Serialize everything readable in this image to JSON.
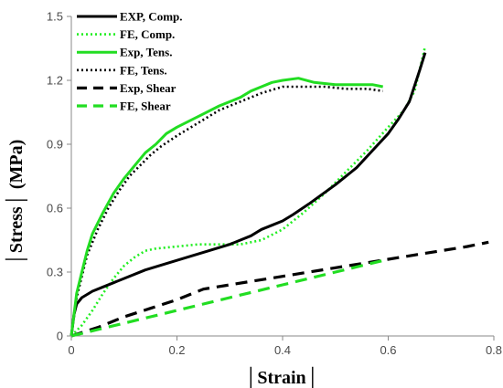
{
  "chart_data": {
    "type": "line",
    "xlabel": "│Strain│",
    "ylabel": "│Stress│ (MPa)",
    "xlim": [
      0,
      0.8
    ],
    "ylim": [
      0,
      1.5
    ],
    "x_ticks": [
      "0",
      "0.2",
      "0.4",
      "0.6",
      "0.8"
    ],
    "y_ticks": [
      "0",
      "0.3",
      "0.6",
      "0.9",
      "1.2",
      "1.5"
    ],
    "x_tick_values": [
      0,
      0.2,
      0.4,
      0.6,
      0.8
    ],
    "y_tick_values": [
      0,
      0.3,
      0.6,
      0.9,
      1.2,
      1.5
    ],
    "grid": false,
    "legend_position": "top-left",
    "series": [
      {
        "name": "EXP, Comp.",
        "color": "#000000",
        "style": "solid",
        "x": [
          0,
          0.005,
          0.01,
          0.02,
          0.04,
          0.06,
          0.08,
          0.1,
          0.14,
          0.18,
          0.22,
          0.26,
          0.3,
          0.34,
          0.36,
          0.38,
          0.4,
          0.42,
          0.45,
          0.5,
          0.54,
          0.57,
          0.6,
          0.62,
          0.64,
          0.66,
          0.67
        ],
        "y": [
          0,
          0.1,
          0.15,
          0.18,
          0.21,
          0.23,
          0.25,
          0.27,
          0.31,
          0.34,
          0.37,
          0.4,
          0.43,
          0.47,
          0.5,
          0.52,
          0.54,
          0.57,
          0.62,
          0.71,
          0.79,
          0.87,
          0.95,
          1.02,
          1.1,
          1.25,
          1.33
        ]
      },
      {
        "name": "FE, Comp.",
        "color": "#22ee22",
        "style": "dotted",
        "x": [
          0,
          0.02,
          0.04,
          0.06,
          0.08,
          0.1,
          0.12,
          0.14,
          0.16,
          0.2,
          0.24,
          0.28,
          0.32,
          0.36,
          0.4,
          0.44,
          0.48,
          0.52,
          0.56,
          0.6,
          0.63,
          0.65,
          0.67
        ],
        "y": [
          0,
          0.05,
          0.12,
          0.2,
          0.27,
          0.33,
          0.37,
          0.4,
          0.41,
          0.42,
          0.43,
          0.43,
          0.43,
          0.45,
          0.5,
          0.58,
          0.67,
          0.77,
          0.87,
          0.98,
          1.06,
          1.15,
          1.36
        ]
      },
      {
        "name": "Exp, Tens.",
        "color": "#22dd22",
        "style": "solid",
        "x": [
          0,
          0.01,
          0.02,
          0.03,
          0.04,
          0.06,
          0.08,
          0.1,
          0.12,
          0.14,
          0.16,
          0.18,
          0.2,
          0.24,
          0.28,
          0.32,
          0.34,
          0.36,
          0.38,
          0.4,
          0.43,
          0.46,
          0.5,
          0.54,
          0.57,
          0.59
        ],
        "y": [
          0,
          0.2,
          0.3,
          0.4,
          0.48,
          0.58,
          0.67,
          0.74,
          0.8,
          0.86,
          0.9,
          0.95,
          0.98,
          1.03,
          1.08,
          1.12,
          1.15,
          1.17,
          1.19,
          1.2,
          1.21,
          1.19,
          1.18,
          1.18,
          1.18,
          1.17
        ]
      },
      {
        "name": "FE, Tens.",
        "color": "#000000",
        "style": "dotted",
        "x": [
          0,
          0.01,
          0.02,
          0.03,
          0.05,
          0.07,
          0.09,
          0.11,
          0.13,
          0.15,
          0.17,
          0.2,
          0.24,
          0.28,
          0.32,
          0.36,
          0.4,
          0.44,
          0.48,
          0.52,
          0.56,
          0.59
        ],
        "y": [
          0,
          0.18,
          0.28,
          0.38,
          0.5,
          0.6,
          0.68,
          0.75,
          0.8,
          0.85,
          0.89,
          0.94,
          1.0,
          1.06,
          1.1,
          1.14,
          1.17,
          1.17,
          1.17,
          1.16,
          1.16,
          1.15
        ]
      },
      {
        "name": "Exp, Shear",
        "color": "#000000",
        "style": "dashed",
        "x": [
          0,
          0.05,
          0.1,
          0.15,
          0.2,
          0.25,
          0.3,
          0.35,
          0.4,
          0.45,
          0.5,
          0.55,
          0.6,
          0.65,
          0.7,
          0.75,
          0.79
        ],
        "y": [
          0,
          0.04,
          0.09,
          0.13,
          0.17,
          0.22,
          0.24,
          0.26,
          0.28,
          0.3,
          0.32,
          0.34,
          0.36,
          0.38,
          0.4,
          0.42,
          0.44
        ]
      },
      {
        "name": "FE, Shear",
        "color": "#22dd22",
        "style": "dashed",
        "x": [
          0,
          0.05,
          0.1,
          0.15,
          0.2,
          0.25,
          0.3,
          0.35,
          0.4,
          0.45,
          0.5,
          0.55,
          0.6
        ],
        "y": [
          0,
          0.03,
          0.06,
          0.09,
          0.12,
          0.15,
          0.18,
          0.21,
          0.24,
          0.27,
          0.3,
          0.33,
          0.36
        ]
      }
    ]
  }
}
